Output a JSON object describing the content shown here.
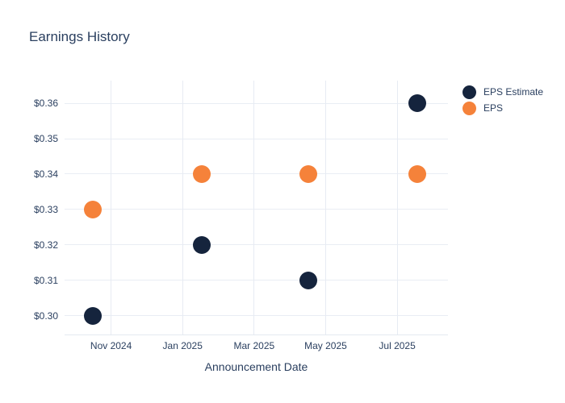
{
  "chart_data": {
    "type": "scatter",
    "title": "Earnings History",
    "xlabel": "Announcement Date",
    "ylabel": "",
    "grid": true,
    "legend_position": "right",
    "background_color": "#ffffff",
    "text_color": "#2a3f5f",
    "gridline_color": "#e9edf4",
    "ylim": [
      0.2947,
      0.3664
    ],
    "xlim_months_from_nov2024": [
      -1.3,
      9.42
    ],
    "y_ticks": [
      {
        "value": 0.36,
        "label": "$0.36"
      },
      {
        "value": 0.35,
        "label": "$0.35"
      },
      {
        "value": 0.34,
        "label": "$0.34"
      },
      {
        "value": 0.33,
        "label": "$0.33"
      },
      {
        "value": 0.32,
        "label": "$0.32"
      },
      {
        "value": 0.31,
        "label": "$0.31"
      },
      {
        "value": 0.3,
        "label": "$0.30"
      }
    ],
    "x_ticks": [
      {
        "month": 0,
        "label": "Nov 2024"
      },
      {
        "month": 2,
        "label": "Jan 2025"
      },
      {
        "month": 4,
        "label": "Mar 2025"
      },
      {
        "month": 6,
        "label": "May 2025"
      },
      {
        "month": 8,
        "label": "Jul 2025"
      }
    ],
    "series": [
      {
        "name": "EPS Estimate",
        "color": "#15243d",
        "points": [
          {
            "date": "2024-10-16",
            "value": 0.3
          },
          {
            "date": "2025-01-17",
            "value": 0.32
          },
          {
            "date": "2025-04-17",
            "value": 0.31
          },
          {
            "date": "2025-07-18",
            "value": 0.36
          }
        ]
      },
      {
        "name": "EPS",
        "color": "#f5823a",
        "points": [
          {
            "date": "2024-10-16",
            "value": 0.33
          },
          {
            "date": "2025-01-17",
            "value": 0.34
          },
          {
            "date": "2025-04-17",
            "value": 0.34
          },
          {
            "date": "2025-07-18",
            "value": 0.34
          }
        ]
      }
    ]
  }
}
